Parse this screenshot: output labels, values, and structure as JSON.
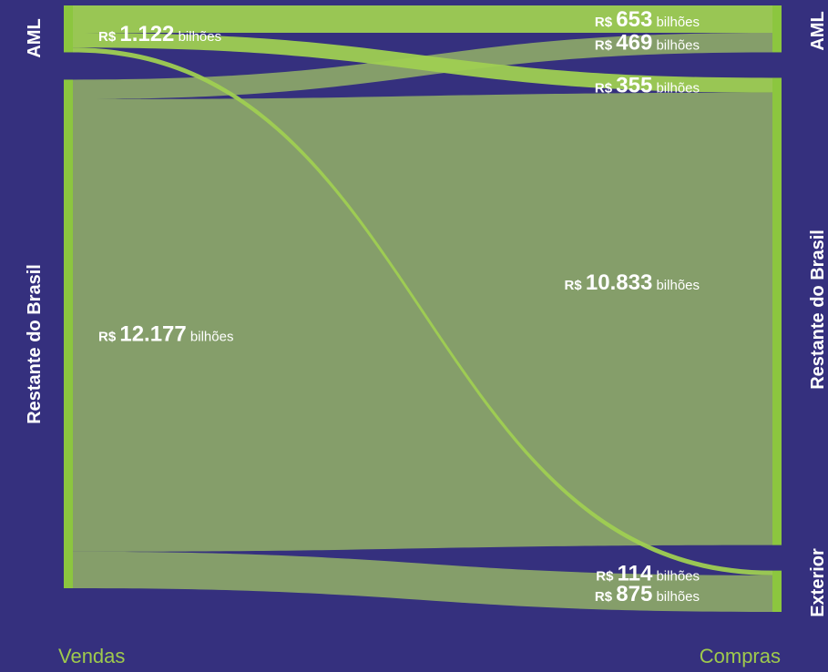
{
  "chart_data": {
    "type": "sankey",
    "x_labels": {
      "left": "Vendas",
      "right": "Compras"
    },
    "left_nodes": [
      {
        "id": "aml_v",
        "name": "AML"
      },
      {
        "id": "rb_v",
        "name": "Restante do Brasil"
      }
    ],
    "right_nodes": [
      {
        "id": "aml_c",
        "name": "AML"
      },
      {
        "id": "rb_c",
        "name": "Restante do Brasil"
      },
      {
        "id": "ext_c",
        "name": "Exterior"
      }
    ],
    "flows": [
      {
        "source": "aml_v",
        "target": "aml_c",
        "currency": "R$",
        "value": 653,
        "value_text": "653",
        "unit": "bilhões",
        "label_side": "right"
      },
      {
        "source": "aml_v",
        "target": "rb_c",
        "currency": "R$",
        "value": 355,
        "value_text": "355",
        "unit": "bilhões",
        "label_side": "right"
      },
      {
        "source": "aml_v",
        "target": "ext_c",
        "currency": "R$",
        "value": 114,
        "value_text": "114",
        "unit": "bilhões",
        "label_side": "right"
      },
      {
        "source": "rb_v",
        "target": "aml_c",
        "currency": "R$",
        "value": 469,
        "value_text": "469",
        "unit": "bilhões",
        "label_side": "right"
      },
      {
        "source": "rb_v",
        "target": "rb_c",
        "currency": "R$",
        "value": 10833,
        "value_text": "10.833",
        "unit": "bilhões",
        "label_side": "right"
      },
      {
        "source": "rb_v",
        "target": "ext_c",
        "currency": "R$",
        "value": 875,
        "value_text": "875",
        "unit": "bilhões",
        "label_side": "right"
      }
    ],
    "totals": [
      {
        "node": "aml_v",
        "currency": "R$",
        "value": 1122,
        "value_text": "1.122",
        "unit": "bilhões"
      },
      {
        "node": "rb_v",
        "currency": "R$",
        "value": 12177,
        "value_text": "12.177",
        "unit": "bilhões"
      }
    ],
    "colors": {
      "background": "#35307e",
      "bar": "#8cc63f",
      "flow_from_aml": "#9fcf52",
      "flow_from_rest": "#87a06a",
      "axis_text": "#9fca4c",
      "text": "#ffffff"
    }
  }
}
